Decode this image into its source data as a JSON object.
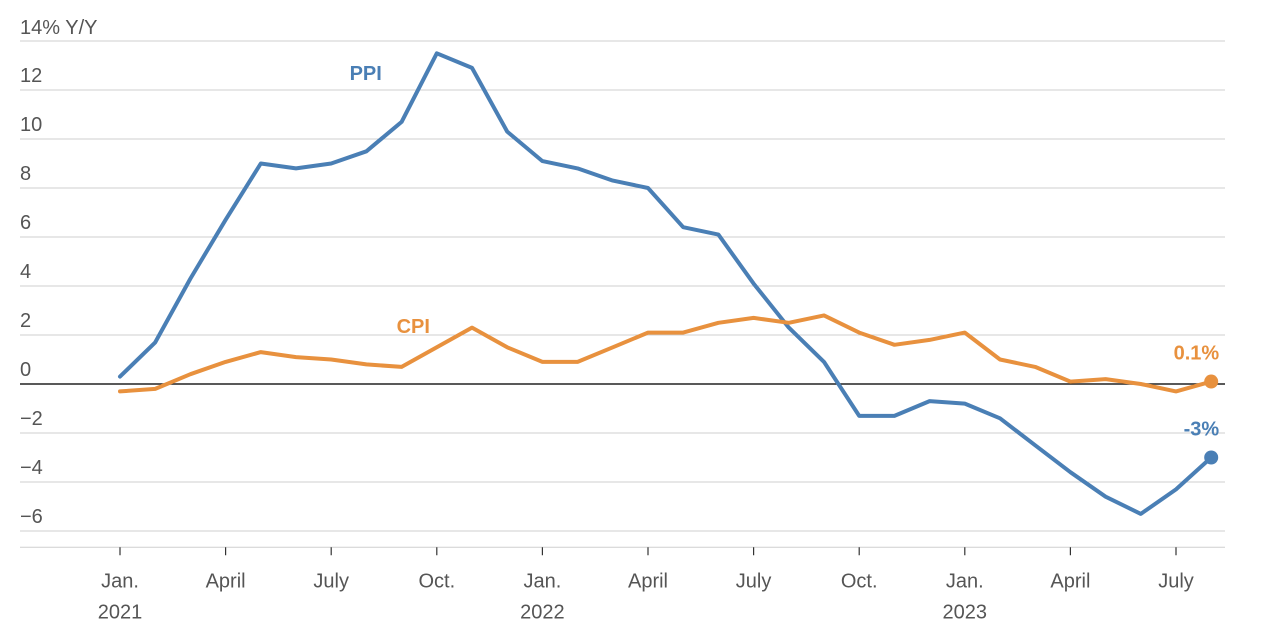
{
  "chart_data": {
    "type": "line",
    "title": "",
    "ylabel_unit": "14% Y/Y",
    "ylim": [
      -6.5,
      14
    ],
    "yticks": [
      12,
      10,
      8,
      6,
      4,
      2,
      0,
      -2,
      -4,
      -6
    ],
    "ytick_labels": [
      "12",
      "10",
      "8",
      "6",
      "4",
      "2",
      "0",
      "−2",
      "−4",
      "−6"
    ],
    "grid": true,
    "x_start": "2021-01",
    "xticks": [
      {
        "index": 0,
        "month": "Jan.",
        "year": "2021"
      },
      {
        "index": 3,
        "month": "April",
        "year": ""
      },
      {
        "index": 6,
        "month": "July",
        "year": ""
      },
      {
        "index": 9,
        "month": "Oct.",
        "year": ""
      },
      {
        "index": 12,
        "month": "Jan.",
        "year": "2022"
      },
      {
        "index": 15,
        "month": "April",
        "year": ""
      },
      {
        "index": 18,
        "month": "July",
        "year": ""
      },
      {
        "index": 21,
        "month": "Oct.",
        "year": ""
      },
      {
        "index": 24,
        "month": "Jan.",
        "year": "2023"
      },
      {
        "index": 27,
        "month": "April",
        "year": ""
      },
      {
        "index": 30,
        "month": "July",
        "year": ""
      }
    ],
    "series": [
      {
        "name": "PPI",
        "color": "#4a7fb5",
        "end_label": "-3%",
        "values": [
          0.3,
          1.7,
          4.3,
          6.7,
          9.0,
          8.8,
          9.0,
          9.5,
          10.7,
          13.5,
          12.9,
          10.3,
          9.1,
          8.8,
          8.3,
          8.0,
          6.4,
          6.1,
          4.1,
          2.3,
          0.9,
          -1.3,
          -1.3,
          -0.7,
          -0.8,
          -1.4,
          -2.5,
          -3.6,
          -4.6,
          -5.3,
          -4.3,
          -3.0
        ]
      },
      {
        "name": "CPI",
        "color": "#e8913e",
        "end_label": "0.1%",
        "values": [
          -0.3,
          -0.2,
          0.4,
          0.9,
          1.3,
          1.1,
          1.0,
          0.8,
          0.7,
          1.5,
          2.3,
          1.5,
          0.9,
          0.9,
          1.5,
          2.1,
          2.1,
          2.5,
          2.7,
          2.5,
          2.8,
          2.1,
          1.6,
          1.8,
          2.1,
          1.0,
          0.7,
          0.1,
          0.2,
          0.0,
          -0.3,
          0.1
        ]
      }
    ]
  }
}
